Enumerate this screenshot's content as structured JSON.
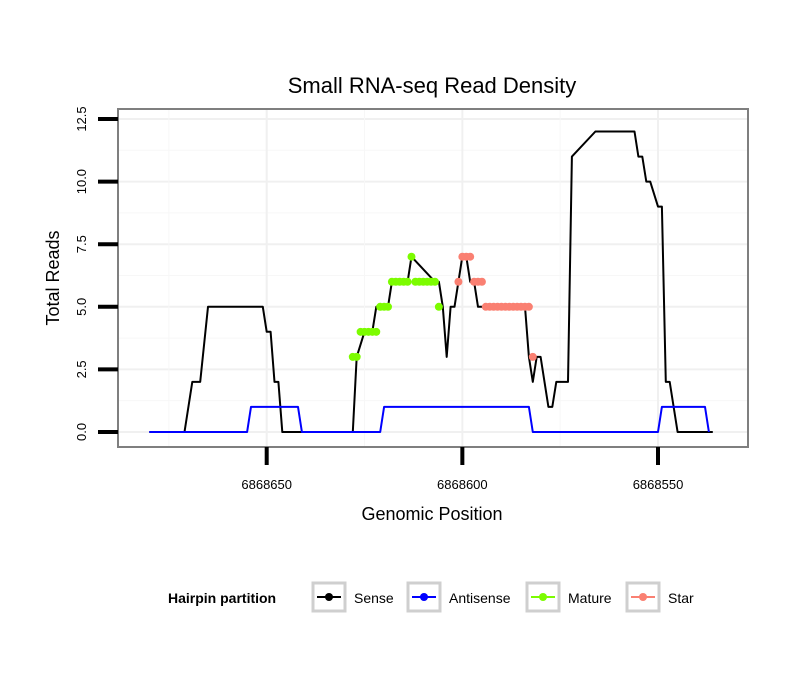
{
  "chart_data": {
    "type": "line",
    "title": "Small RNA-seq Read Density",
    "xlabel": "Genomic Position",
    "ylabel": "Total Reads",
    "xlim": [
      6868688,
      6868527
    ],
    "ylim": [
      -0.6,
      12.9
    ],
    "x_reversed": true,
    "xticks": [
      6868650,
      6868600,
      6868550
    ],
    "xtick_labels": [
      "6868650",
      "6868600",
      "6868550"
    ],
    "yticks": [
      0,
      2.5,
      5,
      7.5,
      10,
      12.5
    ],
    "ytick_labels": [
      "0.0",
      "2.5",
      "5.0",
      "7.5",
      "10.0",
      "12.5"
    ],
    "grid": true,
    "legend": {
      "title": "Hairpin partition",
      "position": "bottom",
      "entries": [
        {
          "name": "Sense",
          "color": "#000000"
        },
        {
          "name": "Antisense",
          "color": "#0000ff"
        },
        {
          "name": "Mature",
          "color": "#7cfc00"
        },
        {
          "name": "Star",
          "color": "#fa8072"
        }
      ]
    },
    "series": [
      {
        "name": "Sense",
        "color": "#000000",
        "x": [
          6868680,
          6868671,
          6868669,
          6868667,
          6868665,
          6868663,
          6868651,
          6868650,
          6868649,
          6868648,
          6868647,
          6868646,
          6868645,
          6868644,
          6868640,
          6868628,
          6868627,
          6868625,
          6868623,
          6868622,
          6868620,
          6868619,
          6868618,
          6868617,
          6868616,
          6868614,
          6868613,
          6868607,
          6868606,
          6868605,
          6868604,
          6868603,
          6868602,
          6868601,
          6868600,
          6868599,
          6868598,
          6868597,
          6868596,
          6868595,
          6868593,
          6868592,
          6868591,
          6868590,
          6868584,
          6868583,
          6868582,
          6868581,
          6868580,
          6868578,
          6868577,
          6868576,
          6868575,
          6868573,
          6868572,
          6868566,
          6868565,
          6868564,
          6868556,
          6868555,
          6868554,
          6868553,
          6868552,
          6868550,
          6868549,
          6868548,
          6868547,
          6868545,
          6868544,
          6868541,
          6868536
        ],
        "y": [
          0,
          0,
          2,
          2,
          5,
          5,
          5,
          4,
          4,
          2,
          2,
          0,
          0,
          0,
          0,
          0,
          3,
          4,
          4,
          5,
          5,
          5,
          6,
          6,
          6,
          6,
          7,
          6,
          6,
          5,
          3,
          5,
          5,
          6,
          7,
          7,
          6,
          6,
          5,
          5,
          5,
          5,
          5,
          5,
          5,
          3,
          2,
          3,
          3,
          1,
          1,
          2,
          2,
          2,
          11,
          12,
          12,
          12,
          12,
          11,
          11,
          10,
          10,
          9,
          9,
          2,
          2,
          0,
          0,
          0,
          0
        ]
      },
      {
        "name": "Antisense",
        "color": "#0000ff",
        "x": [
          6868680,
          6868666,
          6868665,
          6868655,
          6868654,
          6868642,
          6868641,
          6868621,
          6868620,
          6868583,
          6868582,
          6868567,
          6868566,
          6868550,
          6868549,
          6868549,
          6868548,
          6868538,
          6868537
        ],
        "y": [
          0,
          0,
          0,
          0,
          1,
          1,
          0,
          0,
          1,
          1,
          0,
          0,
          0,
          0,
          1,
          1,
          1,
          1,
          0
        ]
      },
      {
        "name": "Mature",
        "color": "#7cfc00",
        "x": [
          6868628,
          6868627,
          6868626,
          6868625,
          6868624,
          6868623,
          6868622,
          6868621,
          6868620,
          6868619,
          6868618,
          6868617,
          6868616,
          6868615,
          6868614,
          6868613,
          6868612,
          6868611,
          6868610,
          6868609,
          6868608,
          6868607,
          6868606
        ],
        "y": [
          3,
          3,
          4,
          4,
          4,
          4,
          4,
          5,
          5,
          5,
          6,
          6,
          6,
          6,
          6,
          7,
          6,
          6,
          6,
          6,
          6,
          6,
          5
        ]
      },
      {
        "name": "Star",
        "color": "#fa8072",
        "x": [
          6868601,
          6868600,
          6868599,
          6868598,
          6868597,
          6868596,
          6868595,
          6868594,
          6868593,
          6868592,
          6868591,
          6868590,
          6868589,
          6868588,
          6868587,
          6868586,
          6868585,
          6868584,
          6868583,
          6868582
        ],
        "y": [
          6,
          7,
          7,
          7,
          6,
          6,
          6,
          5,
          5,
          5,
          5,
          5,
          5,
          5,
          5,
          5,
          5,
          5,
          5,
          3
        ]
      }
    ]
  }
}
